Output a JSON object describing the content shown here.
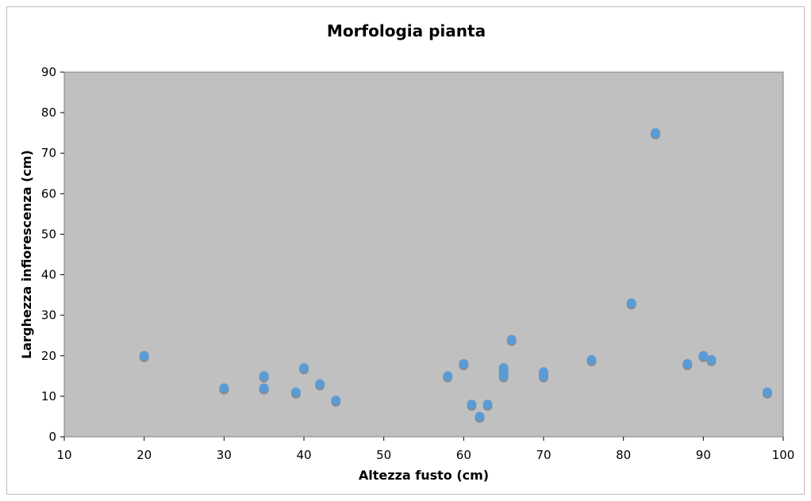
{
  "chart_data": {
    "type": "scatter",
    "title": "Morfologia pianta",
    "xlabel": "Altezza fusto (cm)",
    "ylabel": "Larghezza infiorescenza (cm)",
    "xlim": [
      10,
      100
    ],
    "ylim": [
      0,
      90
    ],
    "xticks": [
      10,
      20,
      30,
      40,
      50,
      60,
      70,
      80,
      90,
      100
    ],
    "yticks": [
      0,
      10,
      20,
      30,
      40,
      50,
      60,
      70,
      80,
      90
    ],
    "grid": false,
    "plot_background": "#c0c0c0",
    "marker_color": "#5b9bd5",
    "marker_shadow_color": "#8a8a8a",
    "points": [
      {
        "x": 20,
        "y": 20
      },
      {
        "x": 30,
        "y": 12
      },
      {
        "x": 35,
        "y": 15
      },
      {
        "x": 35,
        "y": 12
      },
      {
        "x": 39,
        "y": 11
      },
      {
        "x": 40,
        "y": 17
      },
      {
        "x": 42,
        "y": 13
      },
      {
        "x": 44,
        "y": 9
      },
      {
        "x": 58,
        "y": 15
      },
      {
        "x": 60,
        "y": 18
      },
      {
        "x": 61,
        "y": 8
      },
      {
        "x": 62,
        "y": 5
      },
      {
        "x": 63,
        "y": 8
      },
      {
        "x": 65,
        "y": 17
      },
      {
        "x": 65,
        "y": 16
      },
      {
        "x": 65,
        "y": 15
      },
      {
        "x": 66,
        "y": 24
      },
      {
        "x": 70,
        "y": 16
      },
      {
        "x": 70,
        "y": 15
      },
      {
        "x": 76,
        "y": 19
      },
      {
        "x": 81,
        "y": 33
      },
      {
        "x": 84,
        "y": 75
      },
      {
        "x": 88,
        "y": 18
      },
      {
        "x": 90,
        "y": 20
      },
      {
        "x": 91,
        "y": 19
      },
      {
        "x": 98,
        "y": 11
      }
    ]
  }
}
